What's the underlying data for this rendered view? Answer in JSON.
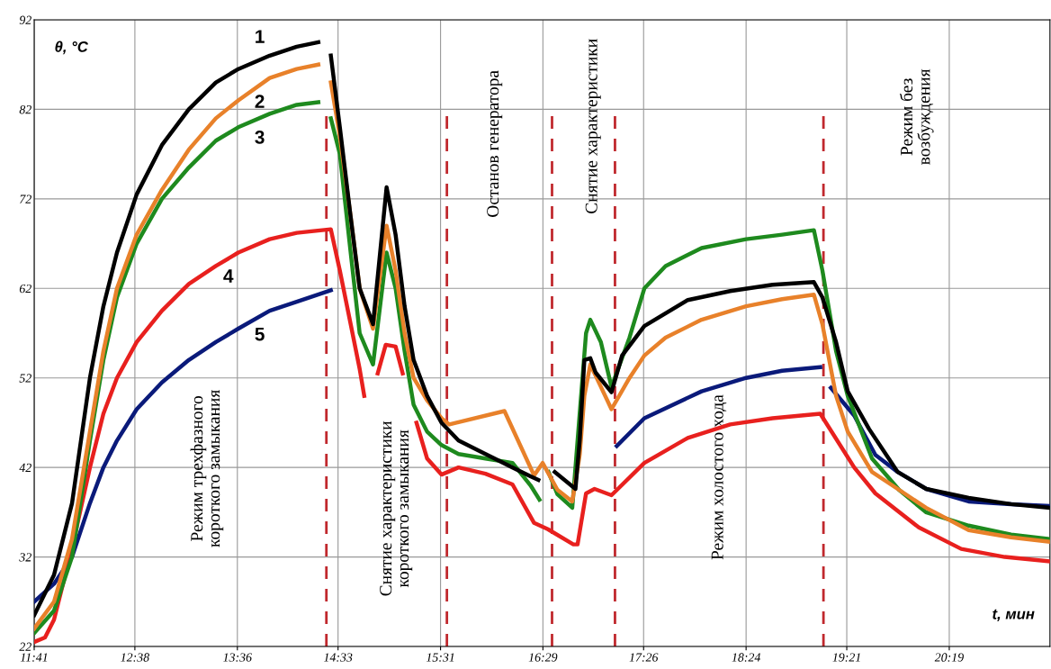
{
  "chart_data": {
    "type": "line",
    "xlabel": "t, мин",
    "ylabel": "θ, °C",
    "xlim": [
      11.683,
      21.267
    ],
    "ylim": [
      22,
      92
    ],
    "xticks": [
      {
        "value": 11.683,
        "label": "11:41"
      },
      {
        "value": 12.633,
        "label": "12:38"
      },
      {
        "value": 13.6,
        "label": "13:36"
      },
      {
        "value": 14.55,
        "label": "14:33"
      },
      {
        "value": 15.517,
        "label": "15:31"
      },
      {
        "value": 16.483,
        "label": "16:29"
      },
      {
        "value": 17.433,
        "label": "17:26"
      },
      {
        "value": 18.4,
        "label": "18:24"
      },
      {
        "value": 19.35,
        "label": "19:21"
      },
      {
        "value": 20.317,
        "label": "20:19"
      }
    ],
    "yticks": [
      22,
      32,
      42,
      52,
      62,
      72,
      82,
      92
    ],
    "grid": true,
    "legend": false,
    "marker": "none",
    "line_style": "solid",
    "series": [
      {
        "name": "1",
        "color": "#000000",
        "x": [
          11.683,
          11.87,
          12.04,
          12.209,
          12.336,
          12.464,
          12.65,
          12.888,
          13.142,
          13.397,
          13.609,
          13.905,
          14.16,
          14.364,
          14.42,
          14.482,
          14.567,
          14.669,
          14.754,
          14.88,
          15.008,
          15.093,
          15.178,
          15.263,
          15.39,
          15.526,
          15.687,
          15.941,
          16.196,
          16.366,
          16.44,
          16.5,
          16.595,
          16.79,
          16.83,
          16.874,
          16.93,
          16.98,
          17.13,
          17.23,
          17.44,
          17.85,
          18.25,
          18.65,
          19.04,
          19.12,
          19.249,
          19.359,
          19.56,
          19.83,
          20.1,
          20.5,
          20.9,
          21.267
        ],
        "values": [
          25.5,
          30,
          38,
          52,
          60,
          66,
          72.5,
          78,
          82,
          85,
          86.5,
          88,
          89,
          89.5,
          null,
          88,
          80,
          70,
          62,
          58,
          73.3,
          68,
          60,
          54,
          50,
          47,
          45,
          43.5,
          42,
          41,
          40.6,
          null,
          41.5,
          39.6,
          45,
          54,
          54.2,
          52.6,
          50.4,
          54.5,
          57.8,
          60.7,
          61.7,
          62.4,
          62.7,
          61,
          56,
          50.5,
          46.3,
          41.5,
          39.6,
          38.6,
          37.9,
          37.5
        ]
      },
      {
        "name": "2",
        "color": "#e8812a",
        "x": [
          11.683,
          11.87,
          12.04,
          12.209,
          12.336,
          12.464,
          12.65,
          12.888,
          13.142,
          13.397,
          13.609,
          13.905,
          14.16,
          14.364,
          14.42,
          14.482,
          14.567,
          14.669,
          14.754,
          14.88,
          15.008,
          15.093,
          15.178,
          15.263,
          15.39,
          15.526,
          15.6,
          16.12,
          16.4,
          16.48,
          16.62,
          16.76,
          16.83,
          16.874,
          16.93,
          17.03,
          17.13,
          17.3,
          17.44,
          17.64,
          17.98,
          18.4,
          18.74,
          19.04,
          19.12,
          19.249,
          19.359,
          19.588,
          19.843,
          20.097,
          20.5,
          20.9,
          21.267
        ],
        "values": [
          24,
          27,
          34,
          46,
          55,
          62,
          68,
          73,
          77.5,
          81,
          83,
          85.5,
          86.5,
          87,
          null,
          85,
          79,
          70,
          62,
          57.5,
          69,
          64,
          57,
          52,
          49.5,
          47.5,
          46.8,
          48.3,
          41.1,
          42.5,
          39.5,
          38.2,
          43.4,
          50,
          53.5,
          51,
          48.5,
          52,
          54.5,
          56.5,
          58.5,
          60,
          60.8,
          61.3,
          58,
          50,
          46,
          41.5,
          39.5,
          37.5,
          35,
          34.2,
          33.7
        ]
      },
      {
        "name": "3",
        "color": "#1e8a1e",
        "x": [
          11.683,
          11.87,
          12.04,
          12.209,
          12.336,
          12.464,
          12.65,
          12.888,
          13.142,
          13.397,
          13.609,
          13.905,
          14.16,
          14.364,
          14.42,
          14.482,
          14.567,
          14.669,
          14.754,
          14.88,
          15.008,
          15.093,
          15.178,
          15.263,
          15.39,
          15.526,
          15.687,
          15.941,
          16.196,
          16.366,
          16.45,
          16.5,
          16.535,
          16.62,
          16.76,
          16.83,
          16.89,
          16.93,
          17.03,
          17.13,
          17.3,
          17.44,
          17.64,
          17.98,
          18.4,
          18.74,
          19.04,
          19.12,
          19.249,
          19.359,
          19.588,
          19.843,
          20.097,
          20.5,
          20.9,
          21.267
        ],
        "values": [
          23.5,
          26,
          32,
          45,
          54,
          61,
          67,
          72,
          75.5,
          78.5,
          80,
          81.5,
          82.5,
          82.8,
          null,
          81,
          77,
          66,
          57,
          53.5,
          66,
          62,
          55,
          49,
          46,
          44.5,
          43.5,
          43,
          42.5,
          40,
          38.4,
          null,
          41.5,
          39,
          37.5,
          48,
          57,
          58.5,
          56,
          51,
          56.5,
          62,
          64.5,
          66.5,
          67.5,
          68,
          68.5,
          64,
          55,
          50,
          43,
          39.5,
          37,
          35.5,
          34.5,
          34
        ]
      },
      {
        "name": "4",
        "color": "#e8201e",
        "x": [
          11.683,
          11.785,
          11.87,
          12.04,
          12.209,
          12.336,
          12.464,
          12.65,
          12.888,
          13.142,
          13.397,
          13.609,
          13.905,
          14.16,
          14.482,
          14.567,
          14.669,
          14.754,
          14.797,
          14.83,
          14.924,
          15.0,
          15.093,
          15.16,
          15.2,
          15.29,
          15.39,
          15.526,
          15.687,
          15.941,
          16.196,
          16.4,
          16.53,
          16.77,
          16.81,
          16.89,
          16.97,
          17.13,
          17.44,
          17.85,
          18.25,
          18.65,
          19.1,
          19.42,
          19.62,
          20.03,
          20.43,
          20.84,
          21.267
        ],
        "values": [
          22.5,
          23,
          25,
          33,
          42,
          48,
          52,
          56,
          59.5,
          62.5,
          64.5,
          66,
          67.5,
          68.2,
          68.6,
          64,
          58,
          53,
          50,
          null,
          52.5,
          55.7,
          55.5,
          52.5,
          null,
          47,
          43,
          41.2,
          42,
          41.3,
          40.1,
          35.8,
          35.1,
          33.4,
          33.4,
          39.1,
          39.6,
          38.9,
          42.5,
          45.3,
          46.8,
          47.5,
          48,
          42,
          39.1,
          35.3,
          32.9,
          32,
          31.5
        ]
      },
      {
        "name": "5",
        "color": "#0a1a7a",
        "x": [
          11.683,
          11.87,
          12.04,
          12.209,
          12.336,
          12.464,
          12.65,
          12.888,
          13.142,
          13.397,
          13.609,
          13.905,
          14.16,
          14.482,
          15.0,
          17.18,
          17.44,
          17.98,
          18.4,
          18.74,
          19.1,
          19.18,
          19.2,
          19.42,
          19.62,
          19.83,
          20.1,
          20.5,
          20.9,
          21.267
        ],
        "values": [
          27,
          29,
          32,
          38,
          42,
          45,
          48.5,
          51.5,
          54,
          56,
          57.5,
          59.5,
          60.5,
          61.8,
          null,
          44.4,
          47.5,
          50.5,
          52,
          52.8,
          53.2,
          null,
          50.9,
          47.8,
          43.4,
          41.5,
          39.6,
          38.2,
          37.9,
          37.7
        ]
      }
    ],
    "ref_lines": [
      {
        "axis": "x",
        "value": 14.44,
        "color": "#c0282d",
        "line_style": "dashed"
      },
      {
        "axis": "x",
        "value": 15.577,
        "color": "#c0282d",
        "line_style": "dashed"
      },
      {
        "axis": "x",
        "value": 16.569,
        "color": "#c0282d",
        "line_style": "dashed"
      },
      {
        "axis": "x",
        "value": 17.163,
        "color": "#c0282d",
        "line_style": "dashed"
      },
      {
        "axis": "x",
        "value": 19.13,
        "color": "#c0282d",
        "line_style": "dashed"
      }
    ],
    "annotations": [
      "Режим трехфазного\nкороткого замыкания",
      "Снятие характеристики\nкороткого замыкания",
      "Останов генератора",
      "Снятие характеристики",
      "Режим холостого хода",
      "Режим без\nвозбуждения"
    ]
  }
}
